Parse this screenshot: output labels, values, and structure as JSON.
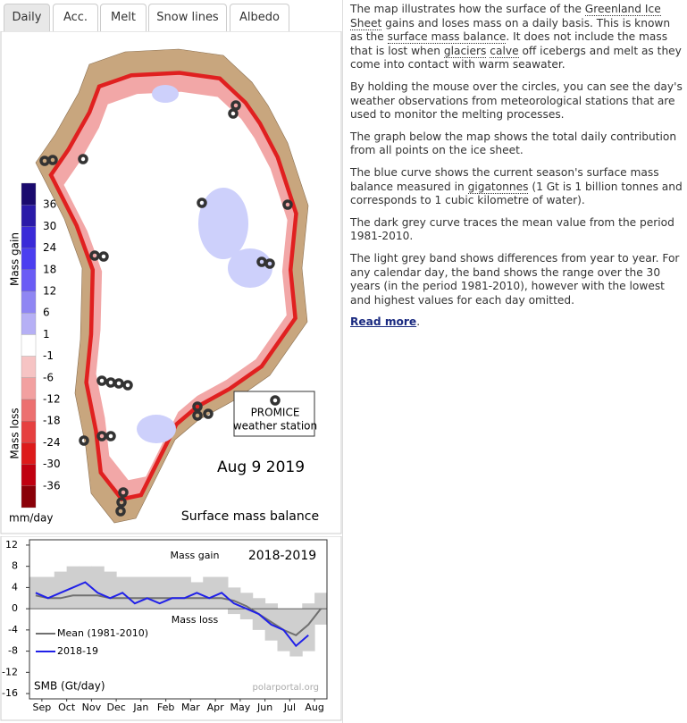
{
  "tabs": [
    "Daily",
    "Acc.",
    "Melt",
    "Snow lines",
    "Albedo"
  ],
  "map": {
    "date": "Aug 9 2019",
    "title": "Surface mass balance",
    "unit": "mm/day",
    "gain_label": "Mass gain",
    "loss_label": "Mass loss",
    "station_label": [
      "PROMICE",
      "weather station"
    ],
    "colorbar": {
      "ticks": [
        36,
        30,
        24,
        18,
        12,
        6,
        1,
        -1,
        -6,
        -12,
        -18,
        -24,
        -30,
        -36
      ],
      "colors": [
        "#1a0a6e",
        "#2a1aa8",
        "#3a2ad8",
        "#4b3ef0",
        "#6a5cf5",
        "#8f86f3",
        "#b6b0f5",
        "#ffffff",
        "#f6c4c4",
        "#f2a0a0",
        "#ec7070",
        "#e64040",
        "#dd1a1a",
        "#c00010",
        "#8a0008"
      ]
    }
  },
  "chart_data": {
    "type": "line",
    "title": "2018-2019",
    "ylabel": "SMB (Gt/day)",
    "annotations": [
      "Mass gain",
      "Mass loss"
    ],
    "credit": "polarportal.org",
    "categories": [
      "Sep",
      null,
      "Oct",
      null,
      "Nov",
      null,
      "Dec",
      null,
      "Jan",
      null,
      "Feb",
      null,
      "Mar",
      null,
      "Apr",
      null,
      "May",
      null,
      "Jun",
      null,
      "Jul",
      null,
      "Aug",
      null
    ],
    "series": [
      {
        "name": "Mean (1981-2010)",
        "color": "#707070",
        "values": [
          2.5,
          2,
          2,
          2.5,
          2.5,
          2.5,
          2,
          2,
          2,
          2,
          2,
          2,
          2,
          2,
          2,
          2,
          1.5,
          0.5,
          -1,
          -2.5,
          -4,
          -5,
          -3,
          0
        ]
      },
      {
        "name": "2018-19",
        "color": "#2020e8",
        "values": [
          3,
          2,
          3,
          4,
          5,
          3,
          2,
          3,
          1,
          2,
          1,
          2,
          2,
          3,
          2,
          3,
          1,
          0,
          -1,
          -3,
          -4,
          -7,
          -5,
          null
        ]
      }
    ],
    "band": {
      "color": "#cfcfcf",
      "low": [
        0,
        0,
        0,
        0,
        0,
        0,
        0,
        0,
        0,
        0,
        0,
        0,
        0,
        0,
        0,
        0,
        -1,
        -2,
        -4,
        -6,
        -8,
        -9,
        -8,
        -3
      ],
      "high": [
        6,
        6,
        7,
        8,
        8,
        8,
        7,
        6,
        6,
        6,
        6,
        6,
        6,
        5,
        6,
        6,
        4,
        3,
        2,
        1,
        0,
        0,
        1,
        3
      ]
    },
    "ylim": [
      -17,
      13
    ],
    "yticks": [
      -16,
      -12,
      -8,
      -4,
      0,
      4,
      8,
      12
    ],
    "grid": false
  },
  "text": {
    "paragraphs": [
      [
        "The map illustrates how the surface of the ",
        "Greenland Ice Sheet",
        " gains and loses mass on a daily basis. This is known as the ",
        "surface mass balance",
        ". It does not include the mass that is lost when ",
        "glaciers",
        "calve",
        " off icebergs and melt as they come into contact with warm seawater."
      ],
      [
        "By holding the mouse over the circles, you can see the day's weather observations from meteorological stations that are used to monitor the melting processes."
      ],
      [
        "The graph below the map shows the total daily contribution from all points on the ice sheet."
      ],
      [
        "The blue curve shows the current season's surface mass balance measured in ",
        "gigatonnes",
        " (1 Gt is 1 billion tonnes and corresponds to 1 cubic kilometre of water)."
      ],
      [
        "The dark grey curve traces the mean value from the period 1981-2010."
      ],
      [
        "The light grey band shows differences from year to year. For any calendar day, the band shows the range over the 30 years (in the period 1981-2010), however with the lowest and highest values for each day omitted."
      ],
      [
        "Read more",
        "."
      ]
    ]
  }
}
